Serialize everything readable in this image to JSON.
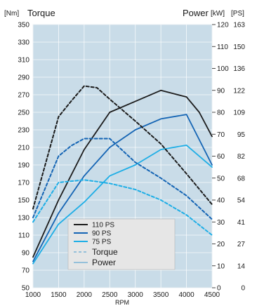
{
  "chart_data": {
    "type": "line",
    "xlabel": "RPM",
    "x_ticks": [
      "1000",
      "1500",
      "2000",
      "2500",
      "3000",
      "3500",
      "4000",
      "4500"
    ],
    "xlim": [
      1000,
      4500
    ],
    "left_axis": {
      "title": "Torque",
      "unit": "[Nm]",
      "ylim": [
        50,
        350
      ],
      "ticks": [
        "50",
        "70",
        "90",
        "110",
        "130",
        "150",
        "170",
        "190",
        "210",
        "230",
        "250",
        "270",
        "290",
        "310",
        "330",
        "350"
      ]
    },
    "right_axis": {
      "title": "Power",
      "unit_kw": "[kW]",
      "unit_ps": "[PS]",
      "ylim_kw": [
        0,
        120
      ],
      "ticks_kw": [
        "0",
        "10",
        "20",
        "30",
        "40",
        "50",
        "60",
        "70",
        "80",
        "90",
        "100",
        "110",
        "120"
      ],
      "ticks_ps": [
        "0",
        "14",
        "27",
        "41",
        "54",
        "68",
        "82",
        "95",
        "109",
        "122",
        "136",
        "150",
        "163"
      ]
    },
    "grid": true,
    "legend_position": "bottom-center",
    "legend": {
      "variants": [
        {
          "label": "110 PS",
          "color": "#1c1c1c"
        },
        {
          "label": "90 PS",
          "color": "#1464b4"
        },
        {
          "label": "75 PS",
          "color": "#1eaee6"
        }
      ],
      "torque_label": "Torque",
      "power_label": "Power"
    },
    "series": [
      {
        "variant": "110 PS",
        "measure": "power_kw",
        "x": [
          1000,
          1500,
          2000,
          2500,
          3000,
          3500,
          4000,
          4250,
          4500
        ],
        "y": [
          14,
          40,
          63,
          80,
          85,
          90,
          87,
          80,
          69
        ]
      },
      {
        "variant": "90 PS",
        "measure": "power_kw",
        "x": [
          1000,
          1500,
          2000,
          2500,
          3000,
          3500,
          4000,
          4500
        ],
        "y": [
          12,
          34,
          51,
          64,
          72,
          77,
          79,
          56
        ]
      },
      {
        "variant": "75 PS",
        "measure": "power_kw",
        "x": [
          1000,
          1500,
          2000,
          2500,
          3000,
          3500,
          4000,
          4500
        ],
        "y": [
          11,
          29,
          39,
          51,
          56,
          63,
          65,
          55
        ]
      },
      {
        "variant": "110 PS",
        "measure": "torque_nm",
        "x": [
          1000,
          1500,
          1750,
          2000,
          2250,
          2500,
          3000,
          3500,
          4000,
          4500
        ],
        "y": [
          140,
          245,
          263,
          280,
          278,
          265,
          240,
          214,
          180,
          145
        ]
      },
      {
        "variant": "90 PS",
        "measure": "torque_nm",
        "x": [
          1000,
          1500,
          1750,
          2000,
          2500,
          3000,
          3500,
          4000,
          4500
        ],
        "y": [
          130,
          200,
          212,
          220,
          220,
          193,
          175,
          155,
          128
        ]
      },
      {
        "variant": "75 PS",
        "measure": "torque_nm",
        "x": [
          1000,
          1500,
          2000,
          2500,
          3000,
          3500,
          4000,
          4500
        ],
        "y": [
          125,
          170,
          173,
          169,
          162,
          150,
          133,
          110
        ]
      }
    ]
  }
}
